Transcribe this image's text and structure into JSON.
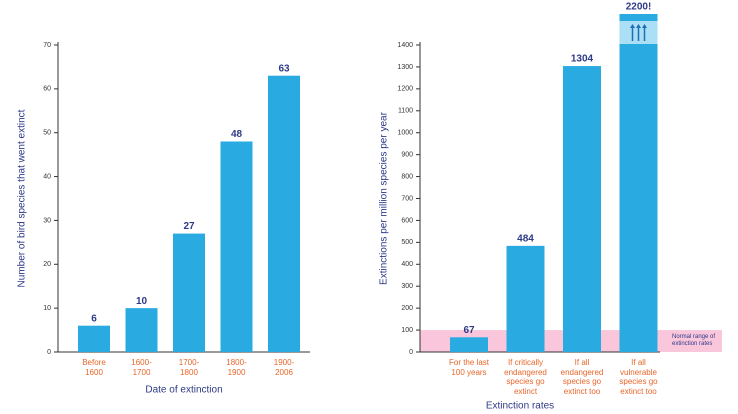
{
  "chart_data": [
    {
      "type": "bar",
      "categories": [
        "Before\n1600",
        "1600-\n1700",
        "1700-\n1800",
        "1800-\n1900",
        "1900-\n2006"
      ],
      "values": [
        6,
        10,
        27,
        48,
        63
      ],
      "color": "#29abe2",
      "ylabel": "Number of bird species that went extinct",
      "xlabel": "Date of extinction",
      "ylim": [
        0,
        70
      ],
      "yticks": [
        0,
        10,
        20,
        30,
        40,
        50,
        60,
        70
      ]
    },
    {
      "type": "bar",
      "categories": [
        "For the last\n100 years",
        "If critically\nendangered\nspecies go\nextinct",
        "If all\nendangered\nspecies go\nextinct too",
        "If all\nvulnerable\nspecies go\nextinct too"
      ],
      "values": [
        67,
        484,
        1304,
        2200
      ],
      "value_labels": [
        "67",
        "484",
        "1304",
        "2200!"
      ],
      "color": "#29abe2",
      "ylabel": "Extinctions per million species per year",
      "xlabel": "Extinction rates",
      "ylim": [
        0,
        1400
      ],
      "yticks": [
        0,
        100,
        200,
        300,
        400,
        500,
        600,
        700,
        800,
        900,
        1000,
        1100,
        1200,
        1300,
        1400
      ],
      "band": {
        "range": [
          0,
          100
        ],
        "label": "Normal range of extinction rates",
        "color": "#f9c6dc"
      }
    }
  ]
}
